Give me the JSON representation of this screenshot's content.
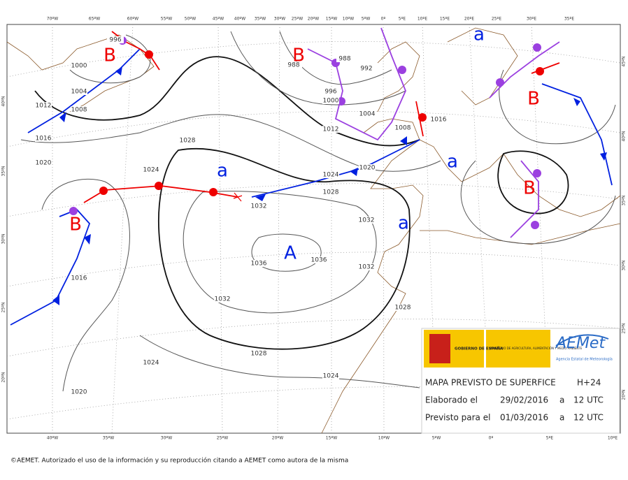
{
  "map": {
    "top_lon_labels": [
      "70ºW",
      "65ºW",
      "60ºW",
      "55ºW",
      "50ºW",
      "45ºW",
      "40ºW",
      "35ºW",
      "30ºW",
      "25ºW",
      "20ºW",
      "15ºW",
      "10ºW",
      "5ºW",
      "0º",
      "5ºE",
      "10ºE",
      "15ºE",
      "20ºE",
      "25ºE",
      "30ºE",
      "35ºE"
    ],
    "bottom_lon_labels": [
      "40ºW",
      "35ºW",
      "30ºW",
      "25ºW",
      "20ºW",
      "15ºW",
      "10ºW",
      "5ºW",
      "0º",
      "5ºE",
      "10ºE"
    ],
    "left_lat_labels": [
      "40ºN",
      "35ºN",
      "30ºN",
      "25ºN",
      "20ºN"
    ],
    "right_lat_labels": [
      "45ºN",
      "40ºN",
      "35ºN",
      "30ºN",
      "25ºN",
      "20ºN"
    ],
    "pressure_centers": [
      "B",
      "B",
      "a",
      "B",
      "a",
      "a",
      "B",
      "a",
      "B",
      "A"
    ],
    "isobar_labels": [
      "996",
      "1000",
      "1004",
      "1008",
      "1012",
      "1016",
      "1020",
      "988",
      "988",
      "992",
      "996",
      "1000",
      "1004",
      "1008",
      "1016",
      "1012",
      "1028",
      "1024",
      "1020",
      "1024",
      "1028",
      "1032",
      "1032",
      "1036",
      "1036",
      "1032",
      "1032",
      "1028",
      "1016",
      "1028",
      "1024",
      "1024",
      "1020"
    ]
  },
  "info_box": {
    "gov_name": "GOBIERNO DE ESPAÑA",
    "ministry": "MINISTERIO DE AGRICULTURA, ALIMENTACIÓN Y MEDIO AMBIENTE",
    "agency_logo": "AEMet",
    "agency_name": "Agencia Estatal de Meteorología",
    "title": "MAPA PREVISTO DE SUPERFICE",
    "lead_time": "H+24",
    "issued_label": "Elaborado el",
    "issued_date": "29/02/2016",
    "issued_at": "a",
    "issued_time": "12 UTC",
    "valid_label": "Previsto para el",
    "valid_date": "01/03/2016",
    "valid_at": "a",
    "valid_time": "12 UTC"
  },
  "copyright": "©AEMET. Autorizado el uso de la información y su reproducción citando a AEMET como autora de la misma"
}
